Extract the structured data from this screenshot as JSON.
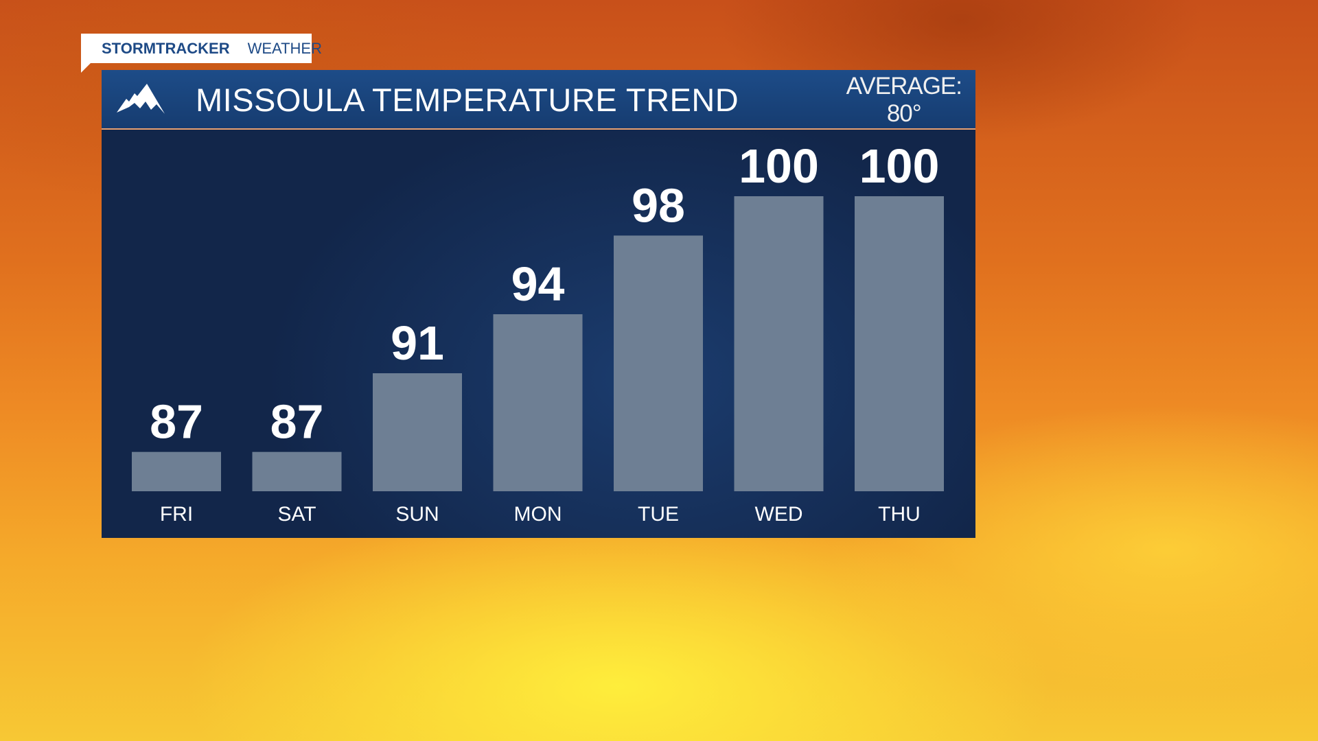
{
  "brand": {
    "primary": "STORMTRACKER",
    "secondary": "WEATHER"
  },
  "header": {
    "icon": "mountain-icon",
    "title": "MISSOULA TEMPERATURE TREND",
    "average_label": "AVERAGE:",
    "average_value": "80°"
  },
  "chart_data": {
    "type": "bar",
    "title": "MISSOULA TEMPERATURE TREND",
    "categories": [
      "FRI",
      "SAT",
      "SUN",
      "MON",
      "TUE",
      "WED",
      "THU"
    ],
    "values": [
      87,
      87,
      91,
      94,
      98,
      100,
      100
    ],
    "ylim": [
      85,
      100
    ],
    "grid": false,
    "colors": {
      "bar": "#6e7f94",
      "label": "#ffffff"
    }
  }
}
